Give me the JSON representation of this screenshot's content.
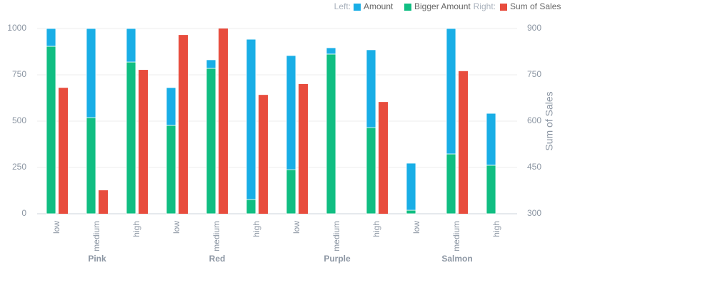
{
  "chart_data": {
    "type": "bar",
    "categories": [
      "low",
      "medium",
      "high",
      "low",
      "medium",
      "high",
      "low",
      "medium",
      "high",
      "low",
      "medium",
      "high"
    ],
    "groups": [
      "Pink",
      "Red",
      "Purple",
      "Salmon"
    ],
    "legend_labels": {
      "left": "Left:",
      "right": "Right:"
    },
    "y2_label": "Sum of Sales",
    "series": [
      {
        "name": "Amount",
        "color": "#19aee6",
        "stack": "a",
        "values": [
          96,
          481,
          181,
          204,
          46,
          865,
          616,
          34,
          420,
          254,
          677,
          280
        ]
      },
      {
        "name": "Bigger Amount",
        "color": "#10be82",
        "stack": "a",
        "values": [
          904,
          519,
          819,
          477,
          785,
          77,
          238,
          862,
          465,
          19,
          323,
          262
        ]
      },
      {
        "name": "Sum of Sales",
        "color": "#e84c3d",
        "axis": "y2",
        "values": [
          708,
          376,
          766,
          879,
          900,
          685,
          720,
          null,
          662,
          null,
          762,
          null
        ]
      }
    ],
    "ylim": [
      0,
      1000
    ],
    "yticks": [
      0,
      250,
      500,
      750,
      1000
    ],
    "y2lim": [
      300,
      900
    ],
    "y2ticks": [
      300,
      450,
      600,
      750,
      900
    ],
    "grid": true
  }
}
